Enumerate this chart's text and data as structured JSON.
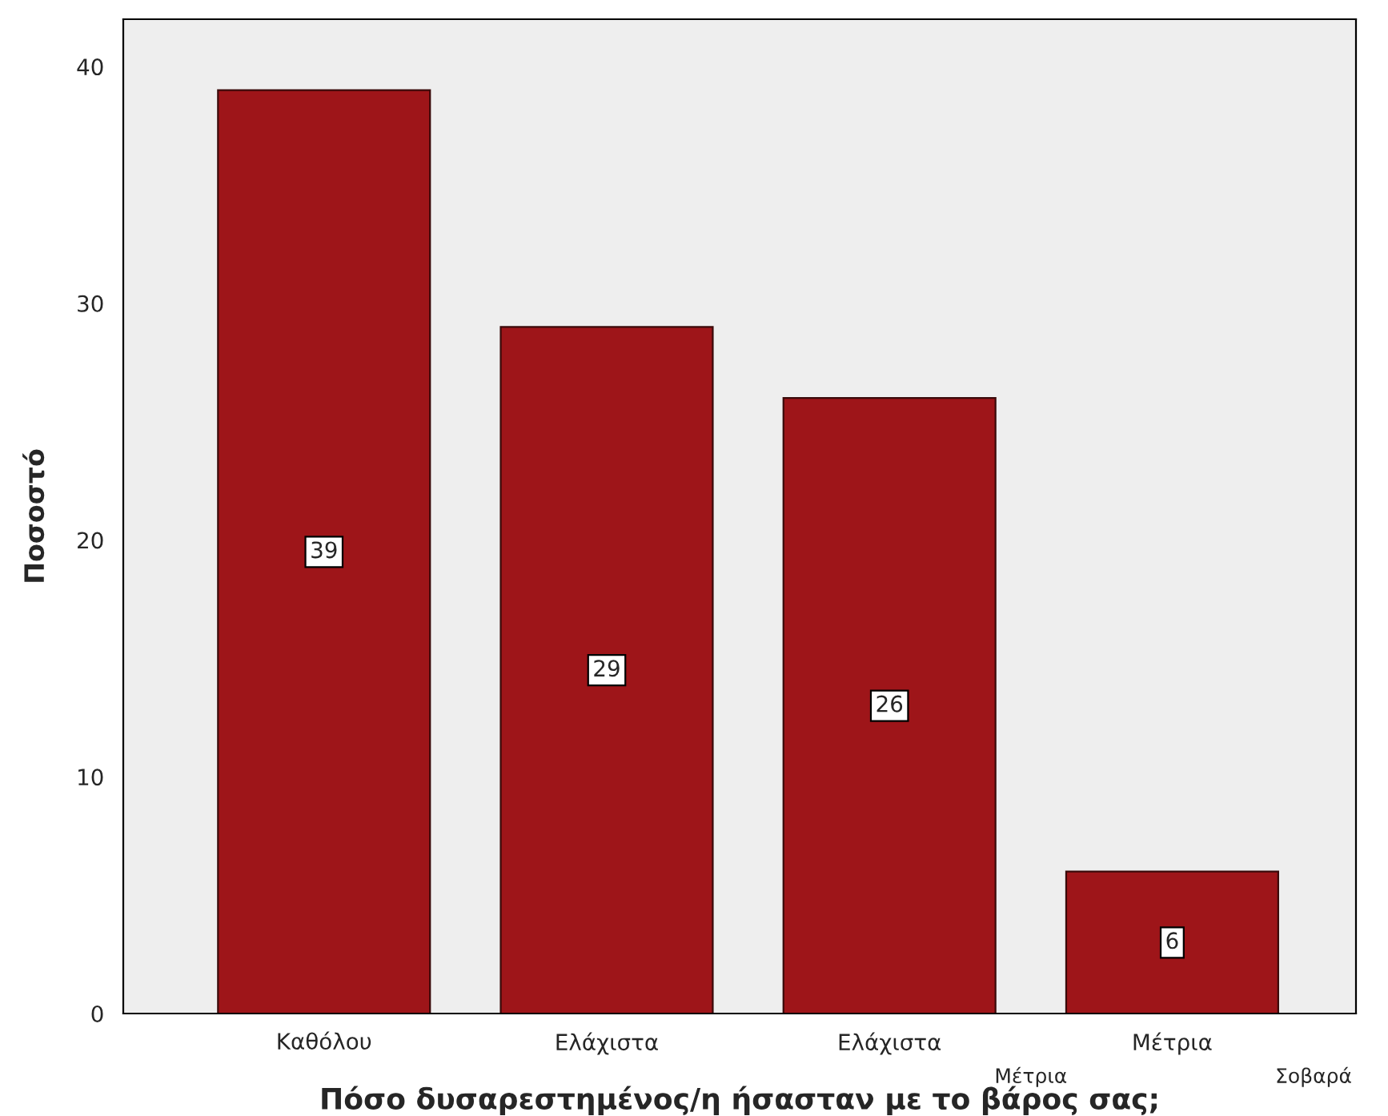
{
  "chart_data": {
    "type": "bar",
    "xlabel": "Πόσο δυσαρεστημένος/η ήσασταν με το βάρος σας;",
    "ylabel": "Ποσοστό",
    "categories": [
      "Καθόλου",
      "Ελάχιστα",
      "Ελάχιστα",
      "Μέτρια"
    ],
    "values": [
      39,
      29,
      26,
      6
    ],
    "color": "#9e1519",
    "data_labels": true,
    "ylim": [
      0,
      42
    ],
    "yticks": [
      0,
      10,
      20,
      30,
      40
    ],
    "grid": false,
    "annotations": [
      "Μέτρια",
      "Σοβαρά"
    ]
  }
}
